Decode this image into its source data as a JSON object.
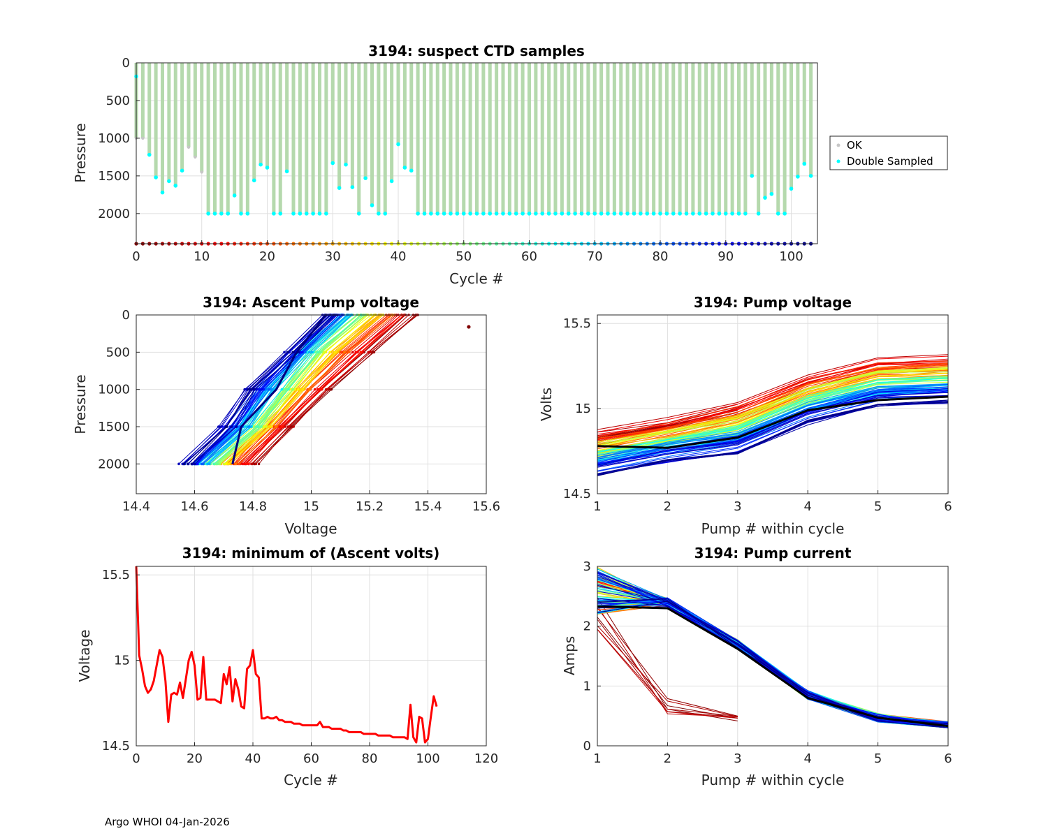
{
  "footer": "Argo WHOI 04-Jan-2026",
  "chart_data": [
    {
      "id": "suspect",
      "type": "bar",
      "title": "3194: suspect CTD samples",
      "xlabel": "Cycle #",
      "ylabel": "Pressure",
      "xlim": [
        0,
        104
      ],
      "ylim": [
        2400,
        0
      ],
      "xticks": [
        0,
        10,
        20,
        30,
        40,
        50,
        60,
        70,
        80,
        90,
        100
      ],
      "yticks": [
        0,
        500,
        1000,
        1500,
        2000
      ],
      "legend": {
        "position": "right",
        "entries": [
          "OK",
          "Double Sampled"
        ]
      },
      "colors": {
        "ok": "#c6c6c6",
        "double": "#00ffff",
        "bar": "#b5d9ad"
      },
      "cycles": [
        0,
        1,
        2,
        3,
        4,
        5,
        6,
        7,
        8,
        9,
        10,
        11,
        12,
        13,
        14,
        15,
        16,
        17,
        18,
        19,
        20,
        21,
        22,
        23,
        24,
        25,
        26,
        27,
        28,
        29,
        30,
        31,
        32,
        33,
        34,
        35,
        36,
        37,
        38,
        39,
        40,
        41,
        42,
        43,
        44,
        45,
        46,
        47,
        48,
        49,
        50,
        51,
        52,
        53,
        54,
        55,
        56,
        57,
        58,
        59,
        60,
        61,
        62,
        63,
        64,
        65,
        66,
        67,
        68,
        69,
        70,
        71,
        72,
        73,
        74,
        75,
        76,
        77,
        78,
        79,
        80,
        81,
        82,
        83,
        84,
        85,
        86,
        87,
        88,
        89,
        90,
        91,
        92,
        93,
        94,
        95,
        96,
        97,
        98,
        99,
        100,
        101,
        102,
        103
      ],
      "max_pressure": [
        1000,
        1000,
        1220,
        1520,
        1720,
        1570,
        1630,
        1430,
        1120,
        1250,
        1450,
        2000,
        2000,
        2000,
        2000,
        1760,
        2000,
        2000,
        1560,
        1350,
        1390,
        2000,
        2000,
        1440,
        2000,
        2000,
        2000,
        2000,
        2000,
        2000,
        1330,
        1660,
        1350,
        1650,
        2000,
        1530,
        1890,
        2000,
        2000,
        1570,
        1080,
        1390,
        1430,
        2000,
        2000,
        2000,
        2000,
        2000,
        2000,
        2000,
        2000,
        2000,
        2000,
        2000,
        2000,
        2000,
        2000,
        2000,
        2000,
        2000,
        2000,
        2000,
        2000,
        2000,
        2000,
        2000,
        2000,
        2000,
        2000,
        2000,
        2000,
        2000,
        2000,
        2000,
        2000,
        2000,
        2000,
        2000,
        2000,
        2000,
        2000,
        2000,
        2000,
        2000,
        2000,
        2000,
        2000,
        2000,
        2000,
        2000,
        2000,
        2000,
        2000,
        2000,
        1500,
        2000,
        1790,
        1740,
        2000,
        2000,
        1670,
        1510,
        1340,
        1500
      ],
      "double_sampled_bottom": [
        180,
        null,
        1220,
        1520,
        1720,
        1570,
        1630,
        1430,
        null,
        null,
        null,
        2000,
        2000,
        2000,
        2000,
        1760,
        2000,
        2000,
        1560,
        1350,
        1390,
        2000,
        2000,
        1440,
        2000,
        2000,
        2000,
        2000,
        2000,
        2000,
        1330,
        1660,
        1350,
        1650,
        2000,
        1530,
        1890,
        2000,
        2000,
        1570,
        1080,
        1390,
        1430,
        2000,
        2000,
        2000,
        2000,
        2000,
        2000,
        2000,
        2000,
        2000,
        2000,
        2000,
        2000,
        2000,
        2000,
        2000,
        2000,
        2000,
        2000,
        2000,
        2000,
        2000,
        2000,
        2000,
        2000,
        2000,
        2000,
        2000,
        2000,
        2000,
        2000,
        2000,
        2000,
        2000,
        2000,
        2000,
        2000,
        2000,
        2000,
        2000,
        2000,
        2000,
        2000,
        2000,
        2000,
        2000,
        2000,
        2000,
        2000,
        2000,
        2000,
        2000,
        1500,
        2000,
        1790,
        1740,
        2000,
        2000,
        1670,
        1510,
        1340,
        1500
      ],
      "cycle_marker_pressure": 2400
    },
    {
      "id": "ascent",
      "type": "scatter",
      "title": "3194: Ascent Pump voltage",
      "xlabel": "Voltage",
      "ylabel": "Pressure",
      "xlim": [
        14.4,
        15.6
      ],
      "ylim": [
        2400,
        0
      ],
      "xticks": [
        14.4,
        14.6,
        14.8,
        15,
        15.2,
        15.4,
        15.6
      ],
      "xtick_labels": [
        "14.4",
        "14.6",
        "14.8",
        "15",
        "15.2",
        "15.4",
        "15.6"
      ],
      "yticks": [
        0,
        500,
        1000,
        1500,
        2000
      ],
      "series_model": "per-cycle pressure vs voltage profiles colored by cycle # (jet colormap)",
      "reference_profiles": {
        "early_cycles_blue": [
          [
            14.57,
            2000
          ],
          [
            14.7,
            1500
          ],
          [
            14.78,
            1000
          ],
          [
            14.92,
            500
          ],
          [
            15.05,
            0
          ]
        ],
        "middle_cycles_cyan": [
          [
            14.65,
            2000
          ],
          [
            14.8,
            1500
          ],
          [
            14.9,
            1000
          ],
          [
            15.0,
            500
          ],
          [
            15.15,
            0
          ]
        ],
        "late_cycles_red": [
          [
            14.8,
            2000
          ],
          [
            14.92,
            1500
          ],
          [
            15.05,
            1000
          ],
          [
            15.2,
            500
          ],
          [
            15.35,
            0
          ]
        ]
      },
      "outlier": {
        "x": 15.54,
        "y": 160
      }
    },
    {
      "id": "pumpvolt",
      "type": "line",
      "title": "3194: Pump voltage",
      "xlabel": "Pump # within cycle",
      "ylabel": "Volts",
      "xlim": [
        1,
        6
      ],
      "ylim": [
        14.5,
        15.55
      ],
      "xticks": [
        1,
        2,
        3,
        4,
        5,
        6
      ],
      "yticks": [
        14.5,
        15,
        15.5
      ],
      "ytick_labels": [
        "14.5",
        "15",
        "15.5"
      ],
      "reference_series": [
        {
          "name": "mean early cycles (blue)",
          "x": [
            1,
            2,
            3,
            4,
            5,
            6
          ],
          "values": [
            14.62,
            14.7,
            14.75,
            14.93,
            15.03,
            15.05
          ]
        },
        {
          "name": "mean late cycles (red)",
          "x": [
            1,
            2,
            3,
            4,
            5,
            6
          ],
          "values": [
            14.85,
            14.92,
            15.02,
            15.18,
            15.28,
            15.3
          ]
        },
        {
          "name": "highlighted (black)",
          "x": [
            1,
            2,
            3,
            4,
            5,
            6
          ],
          "values": [
            14.78,
            14.77,
            14.83,
            14.99,
            15.05,
            15.07
          ]
        }
      ]
    },
    {
      "id": "minvolt",
      "type": "line",
      "title": "3194: minimum of (Ascent volts)",
      "xlabel": "Cycle #",
      "ylabel": "Voltage",
      "xlim": [
        0,
        120
      ],
      "ylim": [
        14.5,
        15.55
      ],
      "xticks": [
        0,
        20,
        40,
        60,
        80,
        100,
        120
      ],
      "yticks": [
        14.5,
        15,
        15.5
      ],
      "ytick_labels": [
        "14.5",
        "15",
        "15.5"
      ],
      "line_color": "#ff0000",
      "series": [
        {
          "name": "minimum ascent voltage",
          "x": [
            0,
            1,
            2,
            3,
            4,
            5,
            6,
            7,
            8,
            9,
            10,
            11,
            12,
            13,
            14,
            15,
            16,
            17,
            18,
            19,
            20,
            21,
            22,
            23,
            24,
            25,
            26,
            27,
            28,
            29,
            30,
            31,
            32,
            33,
            34,
            35,
            36,
            37,
            38,
            39,
            40,
            41,
            42,
            43,
            44,
            45,
            46,
            47,
            48,
            49,
            50,
            51,
            52,
            53,
            54,
            55,
            56,
            57,
            58,
            59,
            60,
            61,
            62,
            63,
            64,
            65,
            66,
            67,
            68,
            69,
            70,
            71,
            72,
            73,
            74,
            75,
            76,
            77,
            78,
            79,
            80,
            81,
            82,
            83,
            84,
            85,
            86,
            87,
            88,
            89,
            90,
            91,
            92,
            93,
            94,
            95,
            96,
            97,
            98,
            99,
            100,
            101,
            102,
            103
          ],
          "values": [
            15.55,
            15.03,
            14.95,
            14.85,
            14.81,
            14.83,
            14.88,
            14.97,
            15.06,
            15.02,
            14.88,
            14.64,
            14.8,
            14.81,
            14.8,
            14.87,
            14.78,
            14.89,
            15.0,
            15.05,
            14.97,
            14.77,
            14.78,
            15.02,
            14.77,
            14.77,
            14.77,
            14.77,
            14.76,
            14.75,
            14.92,
            14.86,
            14.96,
            14.76,
            14.89,
            14.83,
            14.73,
            14.72,
            14.95,
            14.97,
            15.06,
            14.92,
            14.9,
            14.66,
            14.66,
            14.67,
            14.66,
            14.66,
            14.67,
            14.65,
            14.65,
            14.64,
            14.64,
            14.64,
            14.63,
            14.63,
            14.63,
            14.62,
            14.62,
            14.62,
            14.62,
            14.62,
            14.62,
            14.64,
            14.61,
            14.61,
            14.61,
            14.6,
            14.6,
            14.6,
            14.6,
            14.59,
            14.59,
            14.58,
            14.58,
            14.58,
            14.58,
            14.58,
            14.57,
            14.57,
            14.57,
            14.57,
            14.57,
            14.56,
            14.56,
            14.56,
            14.56,
            14.56,
            14.55,
            14.55,
            14.55,
            14.55,
            14.55,
            14.54,
            14.74,
            14.55,
            14.52,
            14.67,
            14.66,
            14.52,
            14.54,
            14.67,
            14.79,
            14.73
          ]
        }
      ]
    },
    {
      "id": "pumpcur",
      "type": "line",
      "title": "3194: Pump current",
      "xlabel": "Pump # within cycle",
      "ylabel": "Amps",
      "xlim": [
        1,
        6
      ],
      "ylim": [
        0,
        3
      ],
      "xticks": [
        1,
        2,
        3,
        4,
        5,
        6
      ],
      "yticks": [
        0,
        1,
        2,
        3
      ],
      "reference_series": [
        {
          "name": "typical (blue)",
          "x": [
            1,
            2,
            3,
            4,
            5,
            6
          ],
          "values": [
            2.8,
            2.4,
            1.7,
            0.85,
            0.47,
            0.33
          ]
        },
        {
          "name": "highlighted (black)",
          "x": [
            1,
            2,
            3,
            4,
            5,
            6
          ],
          "values": [
            2.33,
            2.3,
            1.62,
            0.8,
            0.47,
            0.33
          ]
        },
        {
          "name": "early cycles (dark red)",
          "x": [
            1,
            2,
            3
          ],
          "values": [
            2.3,
            0.78,
            0.45
          ]
        }
      ]
    }
  ]
}
